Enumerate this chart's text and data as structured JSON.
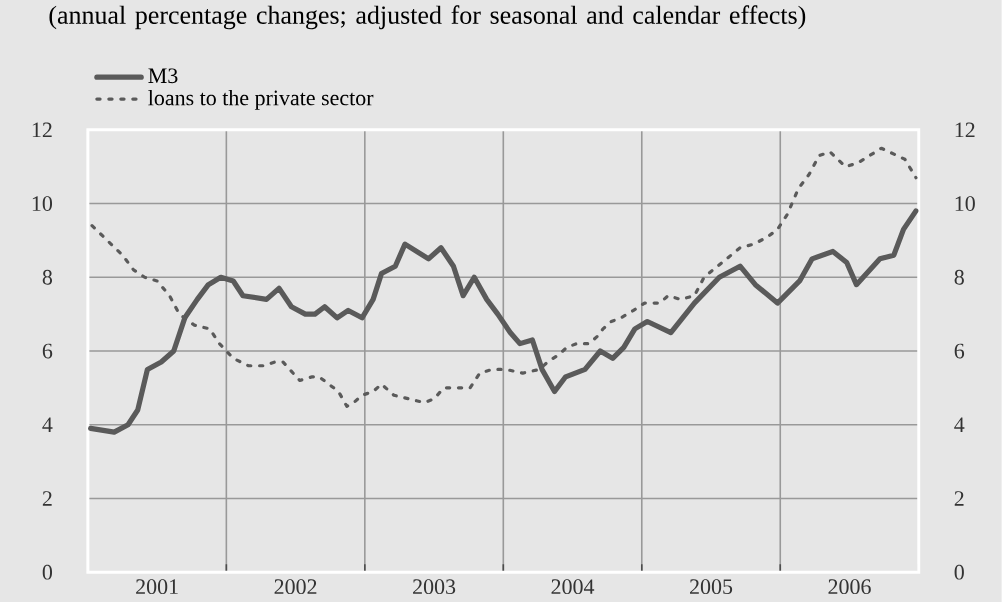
{
  "chart_data": {
    "type": "line",
    "title": "(annual percentage changes; adjusted for seasonal and calendar effects)",
    "series": [
      {
        "name": "M3",
        "color": "#5a5a5a",
        "line_style": "solid",
        "x": [
          2001.02,
          2001.19,
          2001.29,
          2001.36,
          2001.43,
          2001.53,
          2001.62,
          2001.7,
          2001.79,
          2001.87,
          2001.96,
          2002.05,
          2002.12,
          2002.29,
          2002.38,
          2002.47,
          2002.57,
          2002.64,
          2002.71,
          2002.8,
          2002.88,
          2002.98,
          2003.06,
          2003.12,
          2003.22,
          2003.29,
          2003.46,
          2003.55,
          2003.64,
          2003.71,
          2003.79,
          2003.88,
          2003.96,
          2004.05,
          2004.12,
          2004.21,
          2004.28,
          2004.37,
          2004.45,
          2004.59,
          2004.7,
          2004.79,
          2004.87,
          2004.95,
          2005.04,
          2005.21,
          2005.38,
          2005.56,
          2005.71,
          2005.82,
          2005.98,
          2006.14,
          2006.23,
          2006.38,
          2006.48,
          2006.55,
          2006.72,
          2006.82,
          2006.89,
          2006.98
        ],
        "values": [
          3.9,
          3.8,
          4.0,
          4.4,
          5.5,
          5.7,
          6.0,
          6.9,
          7.4,
          7.8,
          8.0,
          7.9,
          7.5,
          7.4,
          7.7,
          7.2,
          7.0,
          7.0,
          7.2,
          6.9,
          7.1,
          6.9,
          7.4,
          8.1,
          8.3,
          8.9,
          8.5,
          8.8,
          8.3,
          7.5,
          8.0,
          7.4,
          7.0,
          6.5,
          6.2,
          6.3,
          5.5,
          4.9,
          5.3,
          5.5,
          6.0,
          5.8,
          6.1,
          6.6,
          6.8,
          6.5,
          7.3,
          8.0,
          8.3,
          7.8,
          7.3,
          7.9,
          8.5,
          8.7,
          8.4,
          7.8,
          8.5,
          8.6,
          9.3,
          9.8
        ]
      },
      {
        "name": "loans to the private sector",
        "color": "#5a5a5a",
        "line_style": "dotted",
        "x": [
          2001.03,
          2001.14,
          2001.25,
          2001.33,
          2001.41,
          2001.5,
          2001.59,
          2001.66,
          2001.77,
          2001.88,
          2001.95,
          2002.05,
          2002.16,
          2002.27,
          2002.35,
          2002.41,
          2002.53,
          2002.62,
          2002.67,
          2002.81,
          2002.87,
          2002.92,
          2002.98,
          2003.06,
          2003.12,
          2003.21,
          2003.32,
          2003.43,
          2003.5,
          2003.57,
          2003.67,
          2003.76,
          2003.83,
          2003.92,
          2004.02,
          2004.14,
          2004.26,
          2004.32,
          2004.4,
          2004.46,
          2004.53,
          2004.62,
          2004.68,
          2004.72,
          2004.78,
          2004.85,
          2004.94,
          2005.02,
          2005.13,
          2005.19,
          2005.28,
          2005.38,
          2005.45,
          2005.58,
          2005.71,
          2005.81,
          2005.91,
          2005.98,
          2006.05,
          2006.13,
          2006.21,
          2006.28,
          2006.36,
          2006.47,
          2006.56,
          2006.73,
          2006.9,
          2006.98
        ],
        "values": [
          9.4,
          9.0,
          8.6,
          8.2,
          8.0,
          7.9,
          7.5,
          7.0,
          6.7,
          6.6,
          6.2,
          5.8,
          5.6,
          5.6,
          5.7,
          5.7,
          5.2,
          5.3,
          5.3,
          4.9,
          4.5,
          4.6,
          4.8,
          4.9,
          5.1,
          4.8,
          4.7,
          4.6,
          4.7,
          5.0,
          5.0,
          5.0,
          5.4,
          5.5,
          5.5,
          5.4,
          5.5,
          5.7,
          5.9,
          6.1,
          6.2,
          6.2,
          6.4,
          6.6,
          6.8,
          6.9,
          7.1,
          7.3,
          7.3,
          7.5,
          7.4,
          7.5,
          8.0,
          8.4,
          8.8,
          8.9,
          9.1,
          9.3,
          9.7,
          10.4,
          10.8,
          11.3,
          11.4,
          11.0,
          11.1,
          11.5,
          11.2,
          10.7
        ]
      }
    ],
    "xlim": [
      2001,
      2007
    ],
    "xticks": [
      {
        "value": 2001,
        "label": null
      },
      {
        "value": 2001.5,
        "label": "2001"
      },
      {
        "value": 2002,
        "label": null
      },
      {
        "value": 2002.5,
        "label": "2002"
      },
      {
        "value": 2003,
        "label": null
      },
      {
        "value": 2003.5,
        "label": "2003"
      },
      {
        "value": 2004,
        "label": null
      },
      {
        "value": 2004.5,
        "label": "2004"
      },
      {
        "value": 2005,
        "label": null
      },
      {
        "value": 2005.5,
        "label": "2005"
      },
      {
        "value": 2006,
        "label": null
      },
      {
        "value": 2006.5,
        "label": "2006"
      },
      {
        "value": 2007,
        "label": null
      }
    ],
    "ylim": [
      0,
      12
    ],
    "yticks": [
      0,
      2,
      4,
      6,
      8,
      10,
      12
    ],
    "y2lim": [
      0,
      12
    ],
    "y2ticks": [
      0,
      2,
      4,
      6,
      8,
      10,
      12
    ],
    "grid": true,
    "legend": "top left",
    "marker": "none"
  }
}
